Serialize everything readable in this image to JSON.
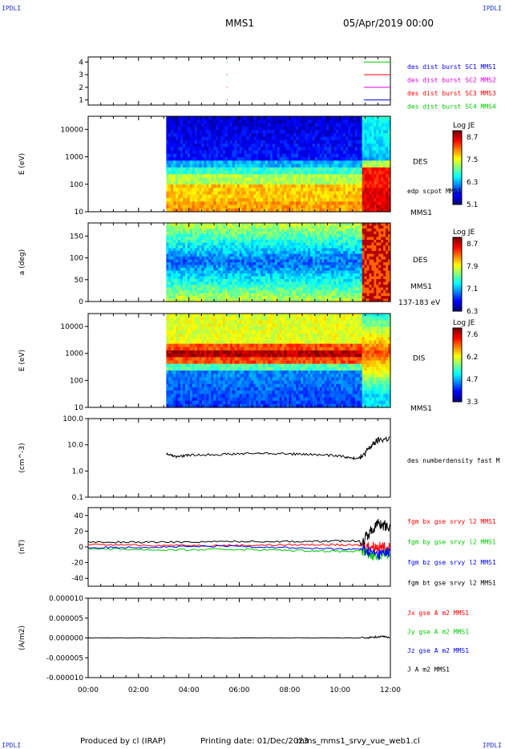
{
  "header": {
    "corner_tl": "IPDLI",
    "corner_tr": "IPDLI",
    "corner_bl": "IPDLI",
    "corner_br": "IPDLI",
    "spacecraft": "MMS1",
    "date": "05/Apr/2019 00:00"
  },
  "footer": {
    "produced": "Produced by cl (IRAP)",
    "printing": "Printing date: 01/Dec/2023",
    "file": "mms_mms1_srvy_vue_web1.cl"
  },
  "colors": {
    "blue": "#0000ff",
    "magenta": "#dd00dd",
    "red": "#ff0000",
    "green": "#00cc00",
    "black": "#000000"
  },
  "chart_data": [
    {
      "id": "burst",
      "type": "scatter",
      "yticks": [
        "1",
        "2",
        "3",
        "4"
      ],
      "ylim": [
        0.6,
        4.4
      ],
      "legend": [
        {
          "label": "des dist burst SC1 MMS1",
          "color": "#0000ff"
        },
        {
          "label": "des dist burst SC2 MMS2",
          "color": "#dd00dd"
        },
        {
          "label": "des dist burst SC3 MMS3",
          "color": "#ff0000"
        },
        {
          "label": "des dist burst SC4 MMS4",
          "color": "#00cc00"
        }
      ],
      "intervals": [
        {
          "y": 4,
          "color": "#00cc00",
          "segments": [
            [
              5.5,
              5.52
            ],
            [
              10.95,
              12.0
            ]
          ]
        },
        {
          "y": 3,
          "color": "#ff0000",
          "segments": [
            [
              5.5,
              5.52
            ],
            [
              10.95,
              12.0
            ]
          ]
        },
        {
          "y": 2,
          "color": "#dd00dd",
          "segments": [
            [
              5.5,
              5.52
            ],
            [
              10.95,
              12.0
            ]
          ]
        },
        {
          "y": 1,
          "color": "#0000ff",
          "segments": [
            [
              5.5,
              5.52
            ],
            [
              10.95,
              12.0
            ]
          ]
        }
      ]
    },
    {
      "id": "des_energy",
      "type": "heatmap",
      "ylabel": "E (eV)",
      "yscale": "log",
      "ylim": [
        10,
        30000
      ],
      "yticks": [
        "10000",
        "1000",
        "100",
        "10"
      ],
      "data_start": 3.1,
      "label1": "DES",
      "label2": "edp scpot MMS1",
      "label3": "MMS1",
      "colorbar": {
        "title": "Log JE",
        "ticks": [
          "8.7",
          "7.5",
          "6.3",
          "5.1"
        ]
      }
    },
    {
      "id": "des_pitch",
      "type": "heatmap",
      "ylabel": "a (deg)",
      "ylim": [
        0,
        180
      ],
      "yticks": [
        "150",
        "100",
        "50",
        "0"
      ],
      "data_start": 3.1,
      "label1": "DES",
      "label2": "MMS1",
      "label3": "137-183 eV",
      "colorbar": {
        "title": "Log JE",
        "ticks": [
          "8.7",
          "7.9",
          "7.1",
          "6.3"
        ]
      }
    },
    {
      "id": "dis_energy",
      "type": "heatmap",
      "ylabel": "E (eV)",
      "yscale": "log",
      "ylim": [
        10,
        30000
      ],
      "yticks": [
        "10000",
        "1000",
        "100",
        "10"
      ],
      "data_start": 3.1,
      "label1": "DIS",
      "label3": "MMS1",
      "colorbar": {
        "title": "Log JE",
        "ticks": [
          "7.6",
          "6.2",
          "4.7",
          "3.3"
        ]
      }
    },
    {
      "id": "density",
      "type": "line",
      "ylabel": "(cm^-3)",
      "yscale": "log",
      "ylim": [
        0.1,
        100
      ],
      "yticks": [
        "100.0",
        "10.0",
        "1.0",
        "0.1"
      ],
      "series": [
        {
          "name": "des numberdensity fast M",
          "color": "#000000",
          "x": [
            3.1,
            3.5,
            4.0,
            5.0,
            6.0,
            7.0,
            8.0,
            9.0,
            10.0,
            10.5,
            10.9,
            11.2,
            11.5,
            12.0
          ],
          "y": [
            4.5,
            3.5,
            4.0,
            4.3,
            4.5,
            4.8,
            4.5,
            4.2,
            3.8,
            3.0,
            3.5,
            8.0,
            15.0,
            18.0
          ]
        }
      ]
    },
    {
      "id": "b_field",
      "type": "line",
      "ylabel": "(nT)",
      "ylim": [
        -50,
        50
      ],
      "yticks": [
        "40",
        "20",
        "0",
        "-20",
        "-40"
      ],
      "series": [
        {
          "name": "fgm bx gse srvy l2 MMS1",
          "color": "#ff0000",
          "x": [
            0.0,
            3.0,
            6.0,
            9.0,
            10.9,
            11.5,
            12.0
          ],
          "y": [
            3,
            2,
            2,
            3,
            2,
            0,
            -2
          ]
        },
        {
          "name": "fgm by gse srvy l2 MMS1",
          "color": "#00cc00",
          "x": [
            0.0,
            3.0,
            6.0,
            9.0,
            10.9,
            11.5,
            12.0
          ],
          "y": [
            -2,
            -4,
            -3,
            -5,
            -6,
            -12,
            -8
          ]
        },
        {
          "name": "fgm bz gse srvy l2 MMS1",
          "color": "#0000ff",
          "x": [
            0.0,
            3.0,
            6.0,
            9.0,
            10.9,
            11.5,
            12.0
          ],
          "y": [
            -1,
            0,
            1,
            -2,
            -3,
            -10,
            -5
          ]
        },
        {
          "name": "fgm bt gse srvy l2 MMS1",
          "color": "#000000",
          "x": [
            0.0,
            3.0,
            6.0,
            9.0,
            10.9,
            11.5,
            12.0
          ],
          "y": [
            6,
            6,
            7,
            7,
            8,
            30,
            25
          ]
        }
      ]
    },
    {
      "id": "current",
      "type": "line",
      "ylabel": "(A/m2)",
      "ylim": [
        -1e-05,
        1e-05
      ],
      "yticks": [
        "0.000010",
        "0.000005",
        "0.000000",
        "-0.000005",
        "-0.000010"
      ],
      "xticks": [
        "00:00",
        "02:00",
        "04:00",
        "06:00",
        "08:00",
        "10:00",
        "12:00"
      ],
      "xlim": [
        0,
        12
      ],
      "series": [
        {
          "name": "Jx gse A m2 MMS1",
          "color": "#ff0000"
        },
        {
          "name": "Jy gse A m2 MMS1",
          "color": "#00cc00"
        },
        {
          "name": "Jz gse A m2 MMS1",
          "color": "#0000ff"
        },
        {
          "name": "J A m2 MMS1",
          "color": "#000000",
          "x": [
            0,
            3,
            6,
            9,
            10.9,
            11.5,
            12.0
          ],
          "y": [
            0,
            0,
            0,
            0,
            0,
            3e-07,
            2e-07
          ]
        }
      ]
    }
  ]
}
